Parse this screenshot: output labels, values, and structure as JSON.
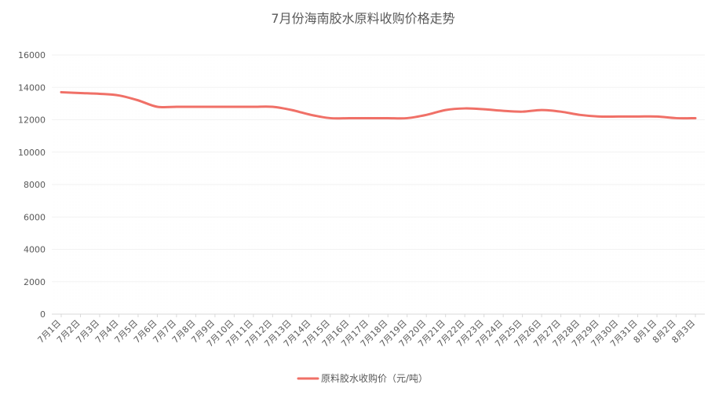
{
  "chart_data": {
    "type": "line",
    "title": "7月份海南胶水原料收购价格走势",
    "xlabel": "",
    "ylabel": "",
    "ylim": [
      0,
      16000
    ],
    "yticks": [
      0,
      2000,
      4000,
      6000,
      8000,
      10000,
      12000,
      14000,
      16000
    ],
    "grid": "on",
    "legend_position": "bottom",
    "line_color": "#F07067",
    "categories": [
      "7月1日",
      "7月2日",
      "7月3日",
      "7月4日",
      "7月5日",
      "7月6日",
      "7月7日",
      "7月8日",
      "7月9日",
      "7月10日",
      "7月11日",
      "7月12日",
      "7月13日",
      "7月14日",
      "7月15日",
      "7月16日",
      "7月17日",
      "7月18日",
      "7月19日",
      "7月20日",
      "7月21日",
      "7月22日",
      "7月23日",
      "7月24日",
      "7月25日",
      "7月26日",
      "7月27日",
      "7月28日",
      "7月29日",
      "7月30日",
      "7月31日",
      "8月1日",
      "8月2日",
      "8月3日"
    ],
    "series": [
      {
        "name": "原料胶水收购价（元/吨）",
        "values": [
          13700,
          13650,
          13600,
          13500,
          13200,
          12800,
          12800,
          12800,
          12800,
          12800,
          12800,
          12800,
          12600,
          12300,
          12100,
          12100,
          12100,
          12100,
          12100,
          12300,
          12600,
          12700,
          12650,
          12550,
          12500,
          12600,
          12500,
          12300,
          12200,
          12200,
          12200,
          12200,
          12100,
          12100
        ]
      }
    ]
  }
}
